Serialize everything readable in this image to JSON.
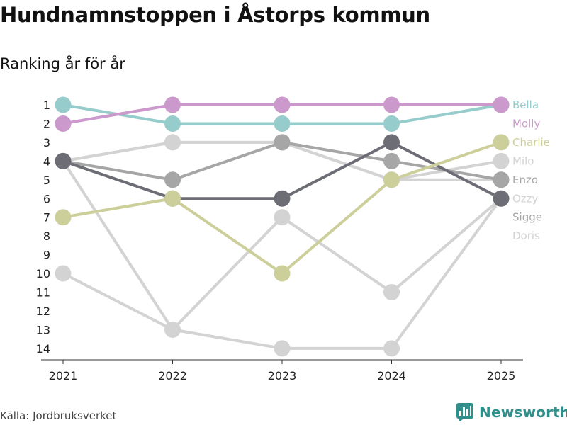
{
  "title": "Hundnamnstoppen i Åstorps kommun",
  "subtitle": "Ranking år för år",
  "source": "Källa: Jordbruksverket",
  "brand": {
    "name": "Newsworthy",
    "icon": "bar-chart-logo-icon"
  },
  "chart_data": {
    "type": "line",
    "subtype": "bump",
    "x": [
      "2021",
      "2022",
      "2023",
      "2024",
      "2025"
    ],
    "y_ticks": [
      1,
      2,
      3,
      4,
      5,
      6,
      7,
      8,
      9,
      10,
      11,
      12,
      13,
      14
    ],
    "ylim": [
      1,
      14
    ],
    "y_inverted": true,
    "grid": false,
    "legend": "right",
    "series": [
      {
        "name": "Doris",
        "color": "#d3d3d3",
        "values": [
          10,
          13,
          14,
          14,
          6
        ]
      },
      {
        "name": "Sigge",
        "color": "#d3d3d3",
        "values": [
          4,
          13,
          7,
          11,
          6
        ]
      },
      {
        "name": "Ozzy",
        "color": "#d3d3d3",
        "values": [
          4,
          3,
          3,
          5,
          5
        ]
      },
      {
        "name": "Milo",
        "color": "#d3d3d3",
        "values": [
          4,
          3,
          3,
          5,
          4
        ]
      },
      {
        "name": "Enzo",
        "color": "#a6a6a6",
        "values": [
          4,
          5,
          3,
          4,
          5
        ]
      },
      {
        "name": "Ozzy",
        "color": "#6d6d75",
        "values": [
          4,
          6,
          6,
          3,
          6
        ]
      },
      {
        "name": "Charlie",
        "color": "#cdcf9a",
        "values": [
          7,
          6,
          10,
          5,
          3
        ]
      },
      {
        "name": "Bella",
        "color": "#96cccb",
        "values": [
          1,
          2,
          2,
          2,
          1
        ]
      },
      {
        "name": "Molly",
        "color": "#cc99cc",
        "values": [
          2,
          1,
          1,
          1,
          1
        ]
      }
    ],
    "legend_entries": [
      {
        "name": "Bella",
        "color": "#96cccb"
      },
      {
        "name": "Molly",
        "color": "#cc99cc"
      },
      {
        "name": "Charlie",
        "color": "#cdcf9a"
      },
      {
        "name": "Milo",
        "color": "#d3d3d3"
      },
      {
        "name": "Enzo",
        "color": "#a6a6a6"
      },
      {
        "name": "Ozzy",
        "color": "#d3d3d3"
      },
      {
        "name": "Sigge",
        "color": "#a6a6a6"
      },
      {
        "name": "Doris",
        "color": "#d3d3d3"
      }
    ]
  }
}
